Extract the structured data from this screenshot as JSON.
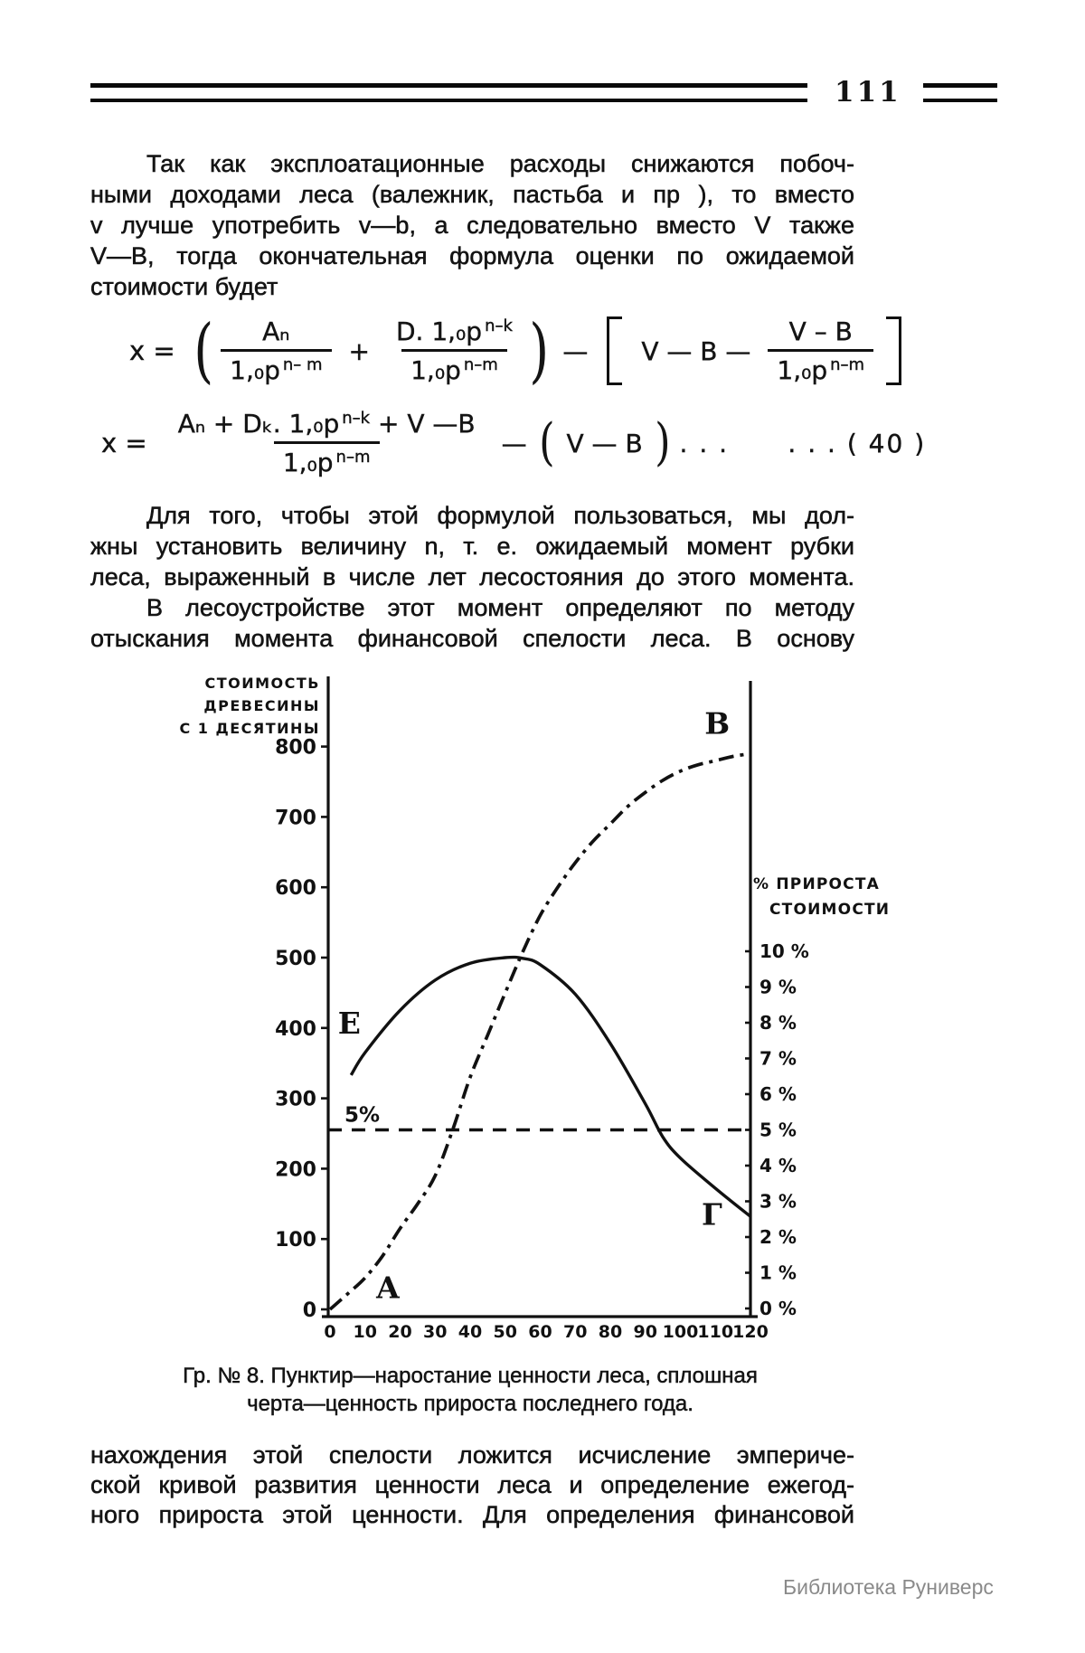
{
  "page": {
    "number": "111"
  },
  "paragraph1": {
    "lines": [
      "Так как эксплоатационные расходы  снижаются побоч-",
      "ными доходами леса (валежник, пастьба и пр ), то вместо",
      "v лучше употребить v—b,  а следовательно вместо V также",
      "V—B, тогда окончательная  формула оценки по ожидаемой",
      "стоимости будет"
    ]
  },
  "formula1": {
    "lhs": "x =",
    "open_paren": "(",
    "frac1_num": "Aₙ",
    "frac1_den": "1,₀p",
    "frac1_exp": "n– m",
    "plus": "+",
    "frac2_num": "D. 1,₀p",
    "frac2_num_exp": "n–k",
    "frac2_den": "1,₀p",
    "frac2_den_exp": "n–m",
    "close_paren": ")",
    "minus": "—",
    "bracket_inner": "V — B —",
    "frac3_num": "V – B",
    "frac3_den": "1,₀p",
    "frac3_exp": "n–m"
  },
  "formula2": {
    "lhs": "x =",
    "num": "Aₙ + Dₖ. 1,₀p",
    "num_exp": "n–k",
    "num_tail": " + V —B",
    "den": "1,₀p",
    "den_exp": "n–m",
    "minus": "—",
    "open_paren": "(",
    "paren_inner": "V — B",
    "close_paren": ")",
    "dots": ". . .      . . . ( 40 )"
  },
  "paragraph2": {
    "lines": [
      "Для того, чтобы этой формулой пользоваться, мы дол-",
      "жны установить величину n, т. е. ожидаемый момент рубки",
      "леса, выраженный в числе лет лесостояния до этого момента.",
      "В лесоустройстве этот момент  определяют по методу",
      "отыскания  момента  финансовой  спелости леса. В основу"
    ]
  },
  "chart_caption": {
    "line1": "Гр. № 8. Пунктир—наростание ценности леса, сплошная",
    "line2": "черта—ценность прироста последнего года."
  },
  "paragraph3": {
    "lines": [
      "нахождения этой спелости  ложится  исчисление  эмпериче-",
      "ской кривой развития ценности леса и определение ежегод-",
      "ного прироста этой ценности. Для определения финансовой"
    ]
  },
  "watermark": "Библиотека Руниверс",
  "chart_data": {
    "type": "line",
    "title": "Гр. № 8",
    "x_axis": {
      "range": [
        0,
        120
      ],
      "ticks": [
        0,
        10,
        20,
        30,
        40,
        50,
        60,
        70,
        80,
        90,
        100,
        110,
        120
      ]
    },
    "left_axis": {
      "title_lines": [
        "СТОИМОСТЬ",
        "ДРЕВЕСИНЫ",
        "С 1 ДЕСЯТИНЫ"
      ],
      "range": [
        0,
        800
      ],
      "ticks": [
        800,
        700,
        600,
        500,
        400,
        300,
        200,
        100,
        0
      ]
    },
    "right_axis": {
      "title_lines": [
        "% ПРИРОСТА",
        "СТОИМОСТИ"
      ],
      "range": [
        0,
        10
      ],
      "tick_labels": [
        "10 %",
        "9 %",
        "8 %",
        "7 %",
        "6 %",
        "5 %",
        "4 %",
        "3 %",
        "2 %",
        "1 %",
        "0 %"
      ],
      "tick_values": [
        10,
        9,
        8,
        7,
        6,
        5,
        4,
        3,
        2,
        1,
        0
      ]
    },
    "series": [
      {
        "name": "наростание ценности леса",
        "line_style": "dash-dot",
        "value_axis": "left",
        "points": [
          [
            0,
            0
          ],
          [
            5,
            22
          ],
          [
            10,
            45
          ],
          [
            15,
            76
          ],
          [
            20,
            115
          ],
          [
            25,
            150
          ],
          [
            30,
            190
          ],
          [
            35,
            255
          ],
          [
            40,
            330
          ],
          [
            45,
            390
          ],
          [
            50,
            450
          ],
          [
            55,
            508
          ],
          [
            60,
            560
          ],
          [
            65,
            600
          ],
          [
            70,
            635
          ],
          [
            75,
            665
          ],
          [
            80,
            690
          ],
          [
            85,
            715
          ],
          [
            90,
            735
          ],
          [
            95,
            752
          ],
          [
            100,
            765
          ],
          [
            105,
            774
          ],
          [
            110,
            780
          ],
          [
            115,
            786
          ],
          [
            120,
            790
          ]
        ]
      },
      {
        "name": "ценность прироста последнего года",
        "line_style": "solid",
        "value_axis": "left",
        "points": [
          [
            6,
            333
          ],
          [
            10,
            365
          ],
          [
            20,
            425
          ],
          [
            30,
            468
          ],
          [
            40,
            492
          ],
          [
            50,
            500
          ],
          [
            55,
            499
          ],
          [
            60,
            490
          ],
          [
            70,
            448
          ],
          [
            80,
            378
          ],
          [
            90,
            292
          ],
          [
            95,
            245
          ],
          [
            100,
            215
          ],
          [
            110,
            172
          ],
          [
            120,
            132
          ]
        ]
      }
    ],
    "reference_line": {
      "label": "5%",
      "value": 5,
      "axis": "right",
      "style": "dashed"
    },
    "point_labels": [
      {
        "text": "A",
        "x": 16.5,
        "value": 16
      },
      {
        "text": "B",
        "x": 110.5,
        "value": 818
      },
      {
        "text": "E",
        "x": 5.5,
        "value": 392
      },
      {
        "text": "Г",
        "x": 109,
        "value": 120
      }
    ]
  }
}
